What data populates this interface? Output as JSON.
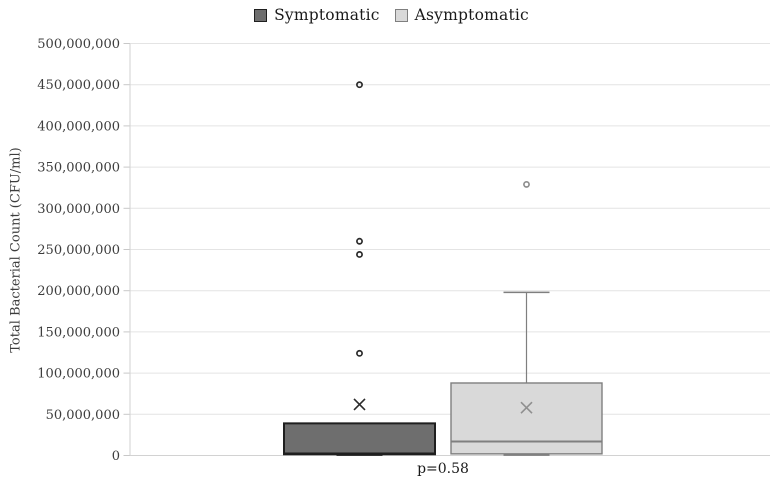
{
  "chart_data": {
    "type": "boxplot",
    "title": "",
    "ylabel": "Total Bacterial Count (CFU/ml)",
    "xlabel": "",
    "ylim": [
      0,
      500000000
    ],
    "ytick_step": 50000000,
    "ytick_labels": [
      "0",
      "50,000,000",
      "100,000,000",
      "150,000,000",
      "200,000,000",
      "250,000,000",
      "300,000,000",
      "350,000,000",
      "400,000,000",
      "450,000,000",
      "500,000,000"
    ],
    "grid": true,
    "legend_position": "top-center",
    "p_value_label": "p=0.58",
    "series": [
      {
        "name": "Symptomatic",
        "whisker_low": 0,
        "q1": 1500000,
        "median": 2500000,
        "q3": 39000000,
        "whisker_high": 39000000,
        "mean": 62000000,
        "outliers": [
          124000000,
          244000000,
          260000000,
          450000000
        ],
        "fill": "#6e6e6e",
        "stroke": "#1f1f1f",
        "marker_color": "#2b2b2b"
      },
      {
        "name": "Asymptomatic",
        "whisker_low": 0,
        "q1": 2000000,
        "median": 17000000,
        "q3": 88000000,
        "whisker_high": 198000000,
        "mean": 58000000,
        "outliers": [
          329000000
        ],
        "fill": "#d9d9d9",
        "stroke": "#7f7f7f",
        "marker_color": "#8f8f8f"
      }
    ],
    "colors": {
      "grid": "#e4e4e4",
      "axis_line": "#d2d2d2",
      "tick": "#c8c8c8",
      "tick_label_text": "#3d3d3d",
      "legend_text": "#1a1a1a"
    }
  }
}
